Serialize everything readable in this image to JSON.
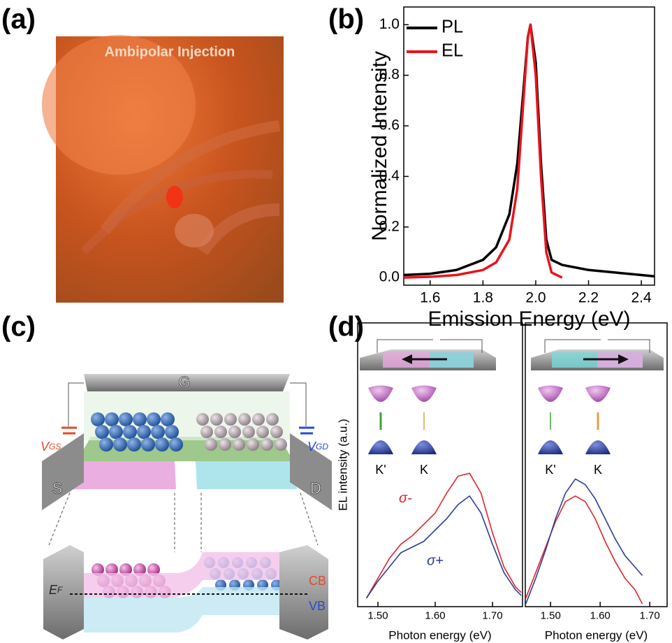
{
  "panel_labels": [
    "(a)",
    "(b)",
    "(c)",
    "(d)"
  ],
  "image_a": {
    "caption": "Ambipolar Injection"
  },
  "diagram_c": {
    "gate": "G",
    "source": "S",
    "drain": "D",
    "v_gs": {
      "main": "V",
      "sub": "GS"
    },
    "v_gd": {
      "main": "V",
      "sub": "GD"
    },
    "cb": "CB",
    "vb": "VB",
    "ef": {
      "main": "E",
      "sub": "F"
    }
  },
  "insets_d": {
    "left": [
      "K'",
      "K"
    ],
    "right": [
      "K'",
      "K"
    ]
  },
  "chart_data": [
    {
      "type": "line",
      "x_label": "Emission Energy (eV)",
      "y_label": "Normalized Intensity",
      "x": [
        1.5,
        1.6,
        1.7,
        1.8,
        1.85,
        1.9,
        1.93,
        1.95,
        1.97,
        1.98,
        2.0,
        2.02,
        2.04,
        2.06,
        2.1,
        2.2,
        2.3,
        2.4,
        2.45
      ],
      "series": [
        {
          "name": "PL",
          "color": "#000000",
          "values": [
            0.01,
            0.015,
            0.03,
            0.07,
            0.12,
            0.25,
            0.45,
            0.7,
            0.95,
            1.0,
            0.85,
            0.45,
            0.15,
            0.07,
            0.05,
            0.03,
            0.02,
            0.01,
            0.005
          ]
        },
        {
          "name": "EL",
          "color": "#e8141c",
          "values": [
            0.0,
            0.003,
            0.01,
            0.03,
            0.06,
            0.15,
            0.35,
            0.65,
            0.95,
            1.0,
            0.8,
            0.4,
            0.1,
            0.02,
            0.0,
            null,
            null,
            null,
            null
          ]
        }
      ],
      "xlim": [
        1.5,
        2.45
      ],
      "ylim": [
        -0.03,
        1.07
      ],
      "xticks": [
        1.6,
        1.8,
        {
          "value": 2.0,
          "label": "2.0"
        },
        2.2,
        2.4
      ],
      "yticks": [
        {
          "value": 0,
          "label": "0.0"
        },
        0.2,
        0.4,
        0.6,
        0.8,
        {
          "value": 1.0,
          "label": "1.0"
        }
      ],
      "legend": "upper-left"
    },
    {
      "type": "line",
      "x_label": "Photon energy (eV)",
      "y_label": "EL intensity (a.u.)",
      "x": [
        1.48,
        1.5,
        1.52,
        1.54,
        1.56,
        1.58,
        1.6,
        1.62,
        1.64,
        1.66,
        1.68,
        1.7,
        1.72,
        1.74,
        1.75
      ],
      "series": [
        {
          "name": "σ-",
          "color": "#e0242a",
          "values": [
            0.03,
            0.1,
            0.17,
            0.22,
            0.25,
            0.29,
            0.33,
            0.4,
            0.46,
            0.47,
            0.4,
            0.26,
            0.14,
            0.07,
            0.05
          ]
        },
        {
          "name": "σ+",
          "color": "#2b3d9a",
          "values": [
            0.03,
            0.09,
            0.14,
            0.19,
            0.21,
            0.23,
            0.27,
            0.31,
            0.36,
            0.39,
            0.33,
            0.22,
            0.12,
            0.06,
            0.04
          ]
        }
      ],
      "xlim": [
        1.4646,
        1.7524
      ],
      "ylim": [
        0,
        1
      ],
      "xticks": [
        {
          "value": 1.5,
          "label": "1.50"
        },
        {
          "value": 1.6,
          "label": "1.60"
        },
        {
          "value": 1.7,
          "label": "1.70"
        }
      ]
    },
    {
      "type": "line",
      "x_label": "Photon energy (eV)",
      "x": [
        1.45,
        1.47,
        1.49,
        1.51,
        1.53,
        1.55,
        1.57,
        1.59,
        1.61,
        1.63,
        1.65,
        1.67,
        1.685
      ],
      "series": [
        {
          "color": "#e0242a",
          "values": [
            0.03,
            0.12,
            0.21,
            0.3,
            0.37,
            0.39,
            0.37,
            0.31,
            0.23,
            0.16,
            0.1,
            0.06,
            0.01
          ]
        },
        {
          "color": "#2b3d9a",
          "values": [
            0.01,
            0.1,
            0.2,
            0.31,
            0.4,
            0.45,
            0.43,
            0.38,
            0.31,
            0.24,
            0.18,
            0.14,
            0.11
          ]
        }
      ],
      "xlim": [
        1.449,
        1.735
      ],
      "ylim": [
        0,
        1
      ],
      "xticks": [
        {
          "value": 1.5,
          "label": "1.50"
        },
        {
          "value": 1.6,
          "label": "1.60"
        },
        {
          "value": 1.7,
          "label": "1.70"
        }
      ]
    }
  ]
}
